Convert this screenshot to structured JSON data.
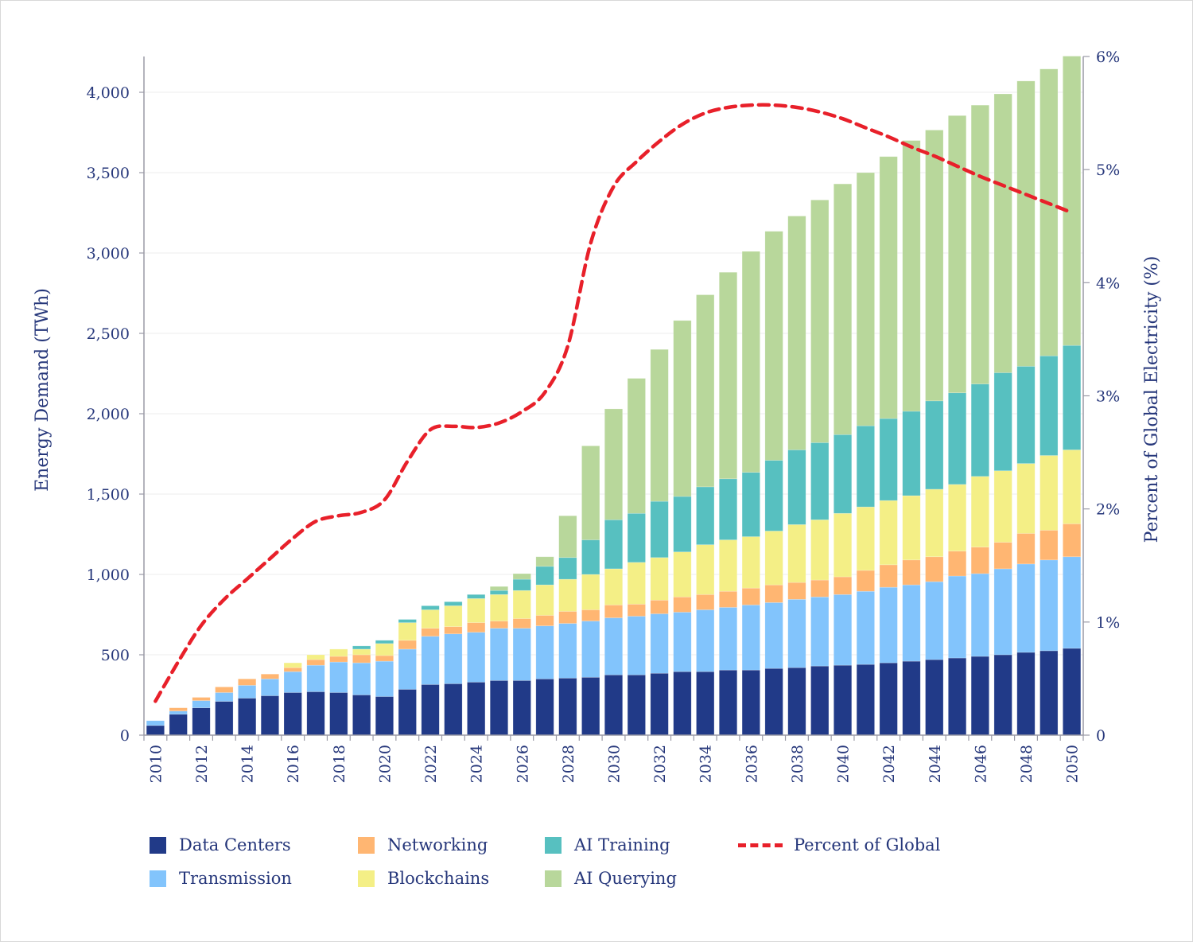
{
  "chart_data": {
    "type": "bar",
    "subtype": "stacked-bar-with-line",
    "title": "",
    "xlabel": "",
    "ylabel": "Energy Demand (TWh)",
    "y2label": "Percent of Global Electricity (%)",
    "ylim": [
      0,
      4225
    ],
    "y2lim": [
      0,
      6
    ],
    "grid": true,
    "legend_position": "bottom",
    "yticks": [
      0,
      500,
      1000,
      1500,
      2000,
      2500,
      3000,
      3500,
      4000
    ],
    "ytick_labels": [
      "0",
      "500",
      "1,000",
      "1,500",
      "2,000",
      "2,500",
      "3,000",
      "3,500",
      "4,000"
    ],
    "y2ticks": [
      0,
      1,
      2,
      3,
      4,
      5,
      6
    ],
    "y2tick_labels": [
      "0",
      "1%",
      "2%",
      "3%",
      "4%",
      "5%",
      "6%"
    ],
    "categories": [
      "2010",
      "2011",
      "2012",
      "2013",
      "2014",
      "2015",
      "2016",
      "2017",
      "2018",
      "2019",
      "2020",
      "2021",
      "2022",
      "2023",
      "2024",
      "2025",
      "2026",
      "2027",
      "2028",
      "2029",
      "2030",
      "2031",
      "2032",
      "2033",
      "2034",
      "2035",
      "2036",
      "2037",
      "2038",
      "2039",
      "2040",
      "2041",
      "2042",
      "2043",
      "2044",
      "2045",
      "2046",
      "2047",
      "2048",
      "2049",
      "2050"
    ],
    "xtick_labels": [
      "2010",
      "2012",
      "2014",
      "2016",
      "2018",
      "2020",
      "2022",
      "2024",
      "2026",
      "2028",
      "2030",
      "2032",
      "2034",
      "2036",
      "2038",
      "2040",
      "2042",
      "2044",
      "2046",
      "2048",
      "2050"
    ],
    "series": [
      {
        "name": "Data Centers",
        "color": "#213a88",
        "values": [
          60,
          130,
          170,
          210,
          230,
          245,
          265,
          270,
          265,
          250,
          240,
          285,
          315,
          320,
          330,
          340,
          340,
          350,
          355,
          360,
          375,
          375,
          385,
          395,
          395,
          405,
          405,
          415,
          420,
          430,
          435,
          440,
          450,
          460,
          470,
          480,
          490,
          500,
          515,
          525,
          540
        ]
      },
      {
        "name": "Transmission",
        "color": "#82c4fc",
        "values": [
          30,
          20,
          45,
          55,
          80,
          105,
          130,
          165,
          190,
          200,
          220,
          250,
          300,
          310,
          310,
          325,
          325,
          330,
          340,
          350,
          355,
          365,
          370,
          370,
          385,
          390,
          405,
          410,
          425,
          430,
          440,
          455,
          470,
          475,
          485,
          510,
          515,
          535,
          550,
          565,
          570
        ]
      },
      {
        "name": "Networking",
        "color": "#ffb672",
        "values": [
          0,
          20,
          20,
          35,
          40,
          30,
          25,
          35,
          35,
          50,
          35,
          55,
          50,
          45,
          60,
          45,
          60,
          65,
          75,
          70,
          80,
          75,
          85,
          95,
          95,
          100,
          105,
          110,
          105,
          105,
          110,
          130,
          140,
          155,
          155,
          155,
          165,
          165,
          190,
          185,
          205
        ]
      },
      {
        "name": "Blockchains",
        "color": "#f4ef86",
        "values": [
          0,
          0,
          0,
          0,
          0,
          0,
          30,
          30,
          45,
          35,
          75,
          110,
          115,
          130,
          150,
          165,
          175,
          190,
          200,
          220,
          225,
          260,
          265,
          280,
          310,
          320,
          320,
          335,
          360,
          375,
          395,
          395,
          400,
          400,
          420,
          415,
          440,
          445,
          435,
          465,
          460
        ]
      },
      {
        "name": "AI Training",
        "color": "#57c0c0",
        "values": [
          0,
          0,
          0,
          0,
          0,
          0,
          0,
          0,
          0,
          20,
          20,
          20,
          25,
          25,
          25,
          25,
          70,
          115,
          135,
          215,
          305,
          305,
          350,
          345,
          360,
          380,
          400,
          440,
          465,
          480,
          490,
          505,
          510,
          525,
          550,
          570,
          575,
          610,
          605,
          620,
          650
        ]
      },
      {
        "name": "AI Querying",
        "color": "#b8d79b",
        "values": [
          0,
          0,
          0,
          0,
          0,
          0,
          0,
          0,
          0,
          0,
          0,
          0,
          0,
          0,
          0,
          25,
          35,
          60,
          260,
          585,
          690,
          840,
          945,
          1095,
          1195,
          1285,
          1375,
          1425,
          1455,
          1510,
          1560,
          1575,
          1630,
          1685,
          1685,
          1725,
          1735,
          1735,
          1775,
          1785,
          1800
        ]
      }
    ],
    "line": {
      "name": "Percent of Global",
      "color": "#e8202a",
      "axis": "right",
      "values": [
        0.3,
        0.65,
        0.97,
        1.2,
        1.38,
        1.56,
        1.74,
        1.89,
        1.94,
        1.97,
        2.08,
        2.42,
        2.7,
        2.73,
        2.72,
        2.76,
        2.86,
        3.03,
        3.44,
        4.35,
        4.85,
        5.07,
        5.25,
        5.4,
        5.5,
        5.55,
        5.57,
        5.57,
        5.55,
        5.51,
        5.45,
        5.37,
        5.29,
        5.2,
        5.12,
        5.03,
        4.94,
        4.86,
        4.78,
        4.7,
        4.62
      ]
    }
  },
  "legend": {
    "items": [
      {
        "label": "Data Centers",
        "color": "#213a88",
        "kind": "swatch"
      },
      {
        "label": "Transmission",
        "color": "#82c4fc",
        "kind": "swatch"
      },
      {
        "label": "Networking",
        "color": "#ffb672",
        "kind": "swatch"
      },
      {
        "label": "Blockchains",
        "color": "#f4ef86",
        "kind": "swatch"
      },
      {
        "label": "AI Training",
        "color": "#57c0c0",
        "kind": "swatch"
      },
      {
        "label": "AI Querying",
        "color": "#b8d79b",
        "kind": "swatch"
      },
      {
        "label": "Percent of Global",
        "color": "#e8202a",
        "kind": "dash"
      }
    ]
  }
}
